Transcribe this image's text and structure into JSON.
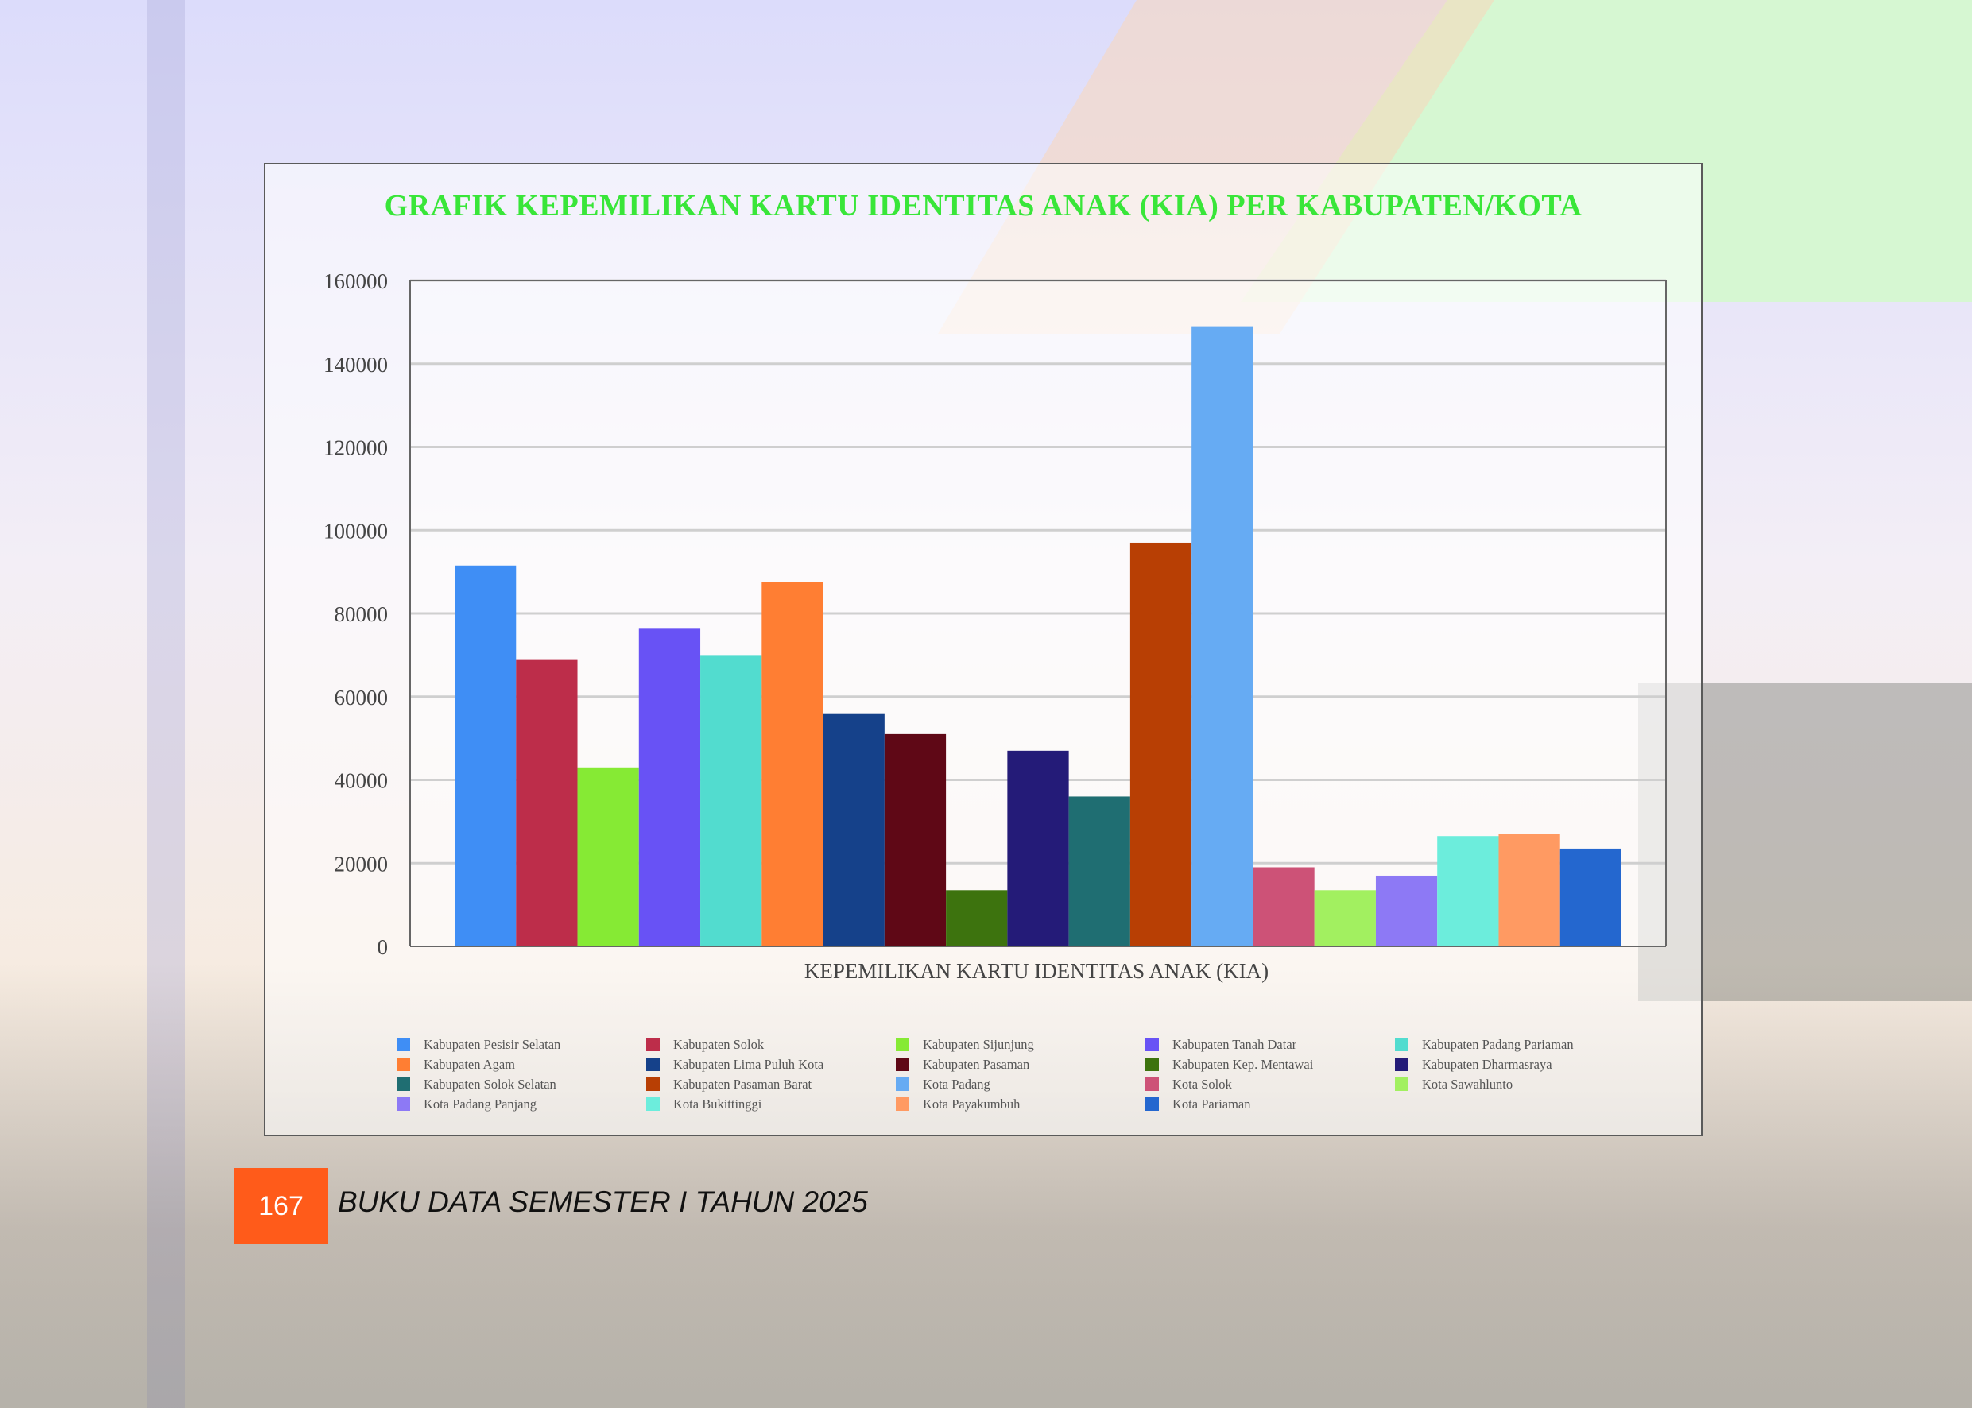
{
  "page": {
    "number": "167",
    "footer_title": "BUKU DATA SEMESTER I TAHUN 2025"
  },
  "colors": {
    "title": "#39e639",
    "page_badge": "#ff5b1a"
  },
  "chart_data": {
    "type": "bar",
    "title": "GRAFIK KEPEMILIKAN KARTU IDENTITAS ANAK (KIA) PER KABUPATEN/KOTA",
    "xlabel": "KEPEMILIKAN KARTU IDENTITAS ANAK (KIA)",
    "ylabel": "",
    "ylim": [
      0,
      160000
    ],
    "yticks": [
      "0",
      "20000",
      "40000",
      "60000",
      "80000",
      "100000",
      "120000",
      "140000",
      "160000"
    ],
    "grid": true,
    "legend_position": "bottom",
    "series": [
      {
        "name": "Kabupaten Pesisir Selatan",
        "value": 91500,
        "color": "#3f8ef5"
      },
      {
        "name": "Kabupaten Solok",
        "value": 69000,
        "color": "#bd2d4a"
      },
      {
        "name": "Kabupaten Sijunjung",
        "value": 43000,
        "color": "#86ea34"
      },
      {
        "name": "Kabupaten Tanah Datar",
        "value": 76500,
        "color": "#6852f5"
      },
      {
        "name": "Kabupaten Padang Pariaman",
        "value": 70000,
        "color": "#52dccf"
      },
      {
        "name": "Kabupaten Agam",
        "value": 87500,
        "color": "#ff7e33"
      },
      {
        "name": "Kabupaten Lima Puluh Kota",
        "value": 56000,
        "color": "#15418a"
      },
      {
        "name": "Kabupaten Pasaman",
        "value": 51000,
        "color": "#5f0816"
      },
      {
        "name": "Kabupaten Kep. Mentawai",
        "value": 13500,
        "color": "#3d730e"
      },
      {
        "name": "Kabupaten Dharmasraya",
        "value": 47000,
        "color": "#241b78"
      },
      {
        "name": "Kabupaten Solok Selatan",
        "value": 36000,
        "color": "#1f6e72"
      },
      {
        "name": "Kabupaten Pasaman Barat",
        "value": 97000,
        "color": "#b83f04"
      },
      {
        "name": "Kota Padang",
        "value": 149000,
        "color": "#66abf3"
      },
      {
        "name": "Kota Solok",
        "value": 19000,
        "color": "#cd5277"
      },
      {
        "name": "Kota Sawahlunto",
        "value": 13500,
        "color": "#a2f060"
      },
      {
        "name": "Kota Padang Panjang",
        "value": 17000,
        "color": "#8d79f5"
      },
      {
        "name": "Kota Bukittinggi",
        "value": 26500,
        "color": "#6ceddc"
      },
      {
        "name": "Kota Payakumbuh",
        "value": 27000,
        "color": "#ff9a62"
      },
      {
        "name": "Kota Pariaman",
        "value": 23500,
        "color": "#2467cf"
      }
    ]
  }
}
